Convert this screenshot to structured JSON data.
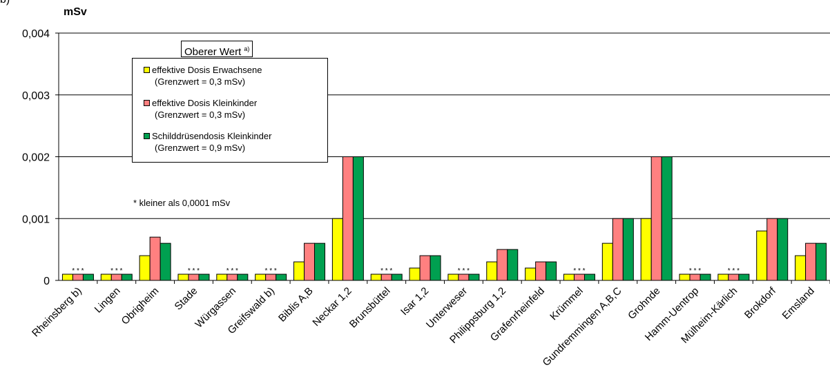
{
  "chart_data": {
    "type": "bar",
    "ylabel": "mSv",
    "ylim": [
      0,
      0.004
    ],
    "yticks": [
      "0",
      "0,001",
      "0,002",
      "0,003",
      "0,004"
    ],
    "ytick_values": [
      0,
      0.001,
      0.002,
      0.003,
      0.004
    ],
    "grid": true,
    "legend_title": "Oberer Wert",
    "legend_title_sup": "a)",
    "legend_position": "top-left",
    "categories": [
      "Rheinsberg b)",
      "Lingen",
      "Obrigheim",
      "Stade",
      "Würgassen",
      "Greifswald b)",
      "Biblis A,B",
      "Neckar 1,2",
      "Brunsbüttel",
      "Isar 1,2",
      "Unterweser",
      "Philippsburg 1,2",
      "Grafenrheinfeld",
      "Krümmel",
      "Gundremmingen A,B,C",
      "Grohnde",
      "Hamm-Uentrop",
      "Mülheim-Kärlich",
      "Brokdorf",
      "Emsland"
    ],
    "series": [
      {
        "name": "effektive Dosis Erwachsene",
        "note": "(Grenzwert = 0,3 mSv)",
        "color": "#ffff00",
        "values": [
          0.0001,
          0.0001,
          0.0004,
          0.0001,
          0.0001,
          0.0001,
          0.0003,
          0.001,
          0.0001,
          0.0002,
          0.0001,
          0.0003,
          0.0002,
          0.0001,
          0.0006,
          0.001,
          0.0001,
          0.0001,
          0.0008,
          0.0004
        ]
      },
      {
        "name": "effektive Dosis Kleinkinder",
        "note": "(Grenzwert = 0,3 mSv)",
        "color": "#ff8080",
        "values": [
          0.0001,
          0.0001,
          0.0007,
          0.0001,
          0.0001,
          0.0001,
          0.0006,
          0.002,
          0.0001,
          0.0004,
          0.0001,
          0.0005,
          0.0003,
          0.0001,
          0.001,
          0.002,
          0.0001,
          0.0001,
          0.001,
          0.0006
        ]
      },
      {
        "name": "Schilddrüsendosis Kleinkinder",
        "note": "(Grenzwert = 0,9 mSv)",
        "color": "#00a050",
        "values": [
          0.0001,
          0.0001,
          0.0006,
          0.0001,
          0.0001,
          0.0001,
          0.0006,
          0.002,
          0.0001,
          0.0004,
          0.0001,
          0.0005,
          0.0003,
          0.0001,
          0.001,
          0.002,
          0.0001,
          0.0001,
          0.001,
          0.0006
        ]
      }
    ],
    "below_threshold_categories": [
      0,
      1,
      3,
      4,
      5,
      8,
      10,
      13,
      16,
      17
    ],
    "marker": "* * *",
    "note": "*  kleiner als 0,0001 mSv"
  },
  "page": {
    "top_cut_text": "b)"
  }
}
